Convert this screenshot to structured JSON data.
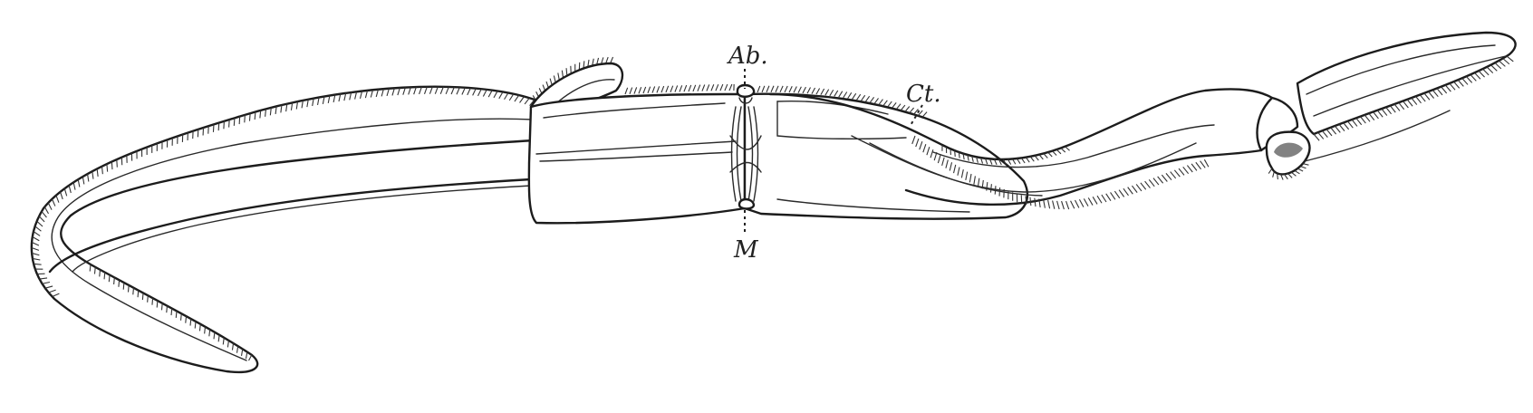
{
  "figure": {
    "labels": {
      "ab": "Ab.",
      "ct": "Ct.",
      "m": "M"
    }
  }
}
